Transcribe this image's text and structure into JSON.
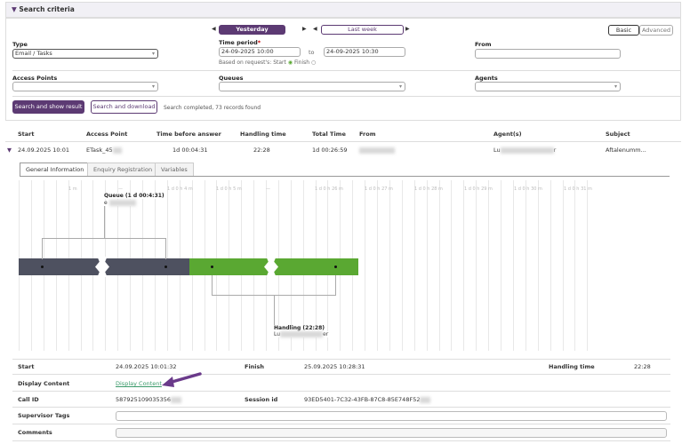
{
  "search": {
    "title": "Search criteria",
    "prev_icon": "triangle-left",
    "next_icon": "triangle-right",
    "period_buttons": [
      "Yesterday",
      "Last week"
    ],
    "mode_buttons": [
      "Basic",
      "Advanced"
    ],
    "type_label": "Type",
    "type_value": "Email / Tasks",
    "time_period_label": "Time period",
    "required_mark": "*",
    "time_from": "24-09-2025 10:00",
    "to_label": "to",
    "time_to": "24-09-2025 10:30",
    "based_on": "Based on request's: Start",
    "finish_label": "Finish",
    "from_label": "From",
    "access_points_label": "Access Points",
    "queues_label": "Queues",
    "agents_label": "Agents",
    "search_show": "Search and show result",
    "search_download": "Search and download",
    "status": "Search completed, 73 records found",
    "accent": "#5c3a73"
  },
  "results": {
    "headers": [
      "Start",
      "Access Point",
      "Time before answer",
      "Handling time",
      "Total Time",
      "From",
      "Agent(s)",
      "Subject"
    ],
    "row": {
      "start": "24.09.2025 10:01",
      "access_point": "ETask_45",
      "time_before_answer": "1d 00:04:31",
      "handling_time": "22:28",
      "total_time": "1d 00:26:59",
      "from": "",
      "agent": "Lu",
      "agent_end": "r",
      "subject": "Aftalenumm..."
    }
  },
  "tabs": [
    "General Information",
    "Enquiry Registration",
    "Variables"
  ],
  "timeline": {
    "ticks": [
      "1 m",
      "—",
      "1 d 0 h 4 m",
      "1 d 0 h 5 m",
      "—",
      "1 d 0 h 26 m",
      "1 d 0 h 27 m",
      "1 d 0 h 28 m",
      "1 d 0 h 29 m",
      "1 d 0 h 30 m",
      "1 d 0 h 31 m"
    ],
    "queue_label": "Queue (1 d 00:4:31)",
    "queue_sub": "e",
    "handling_label": "Handling (22:28)",
    "handling_sub_start": "Lu",
    "handling_sub_end": "er",
    "queue_color": "#4e5160",
    "handling_color": "#5aa832"
  },
  "details": {
    "start_label": "Start",
    "start_value": "24.09.2025 10:01:32",
    "finish_label": "Finish",
    "finish_value": "25.09.2025 10:28:31",
    "handling_label": "Handling time",
    "handling_value": "22:28",
    "display_label": "Display Content",
    "display_link": "Display Content",
    "call_label": "Call ID",
    "call_value": "587925109035356",
    "session_label": "Session id",
    "session_value": "93ED5401-7C32-43FB-87C8-85E748F52",
    "tags_label": "Supervisor Tags",
    "comments_label": "Comments"
  }
}
